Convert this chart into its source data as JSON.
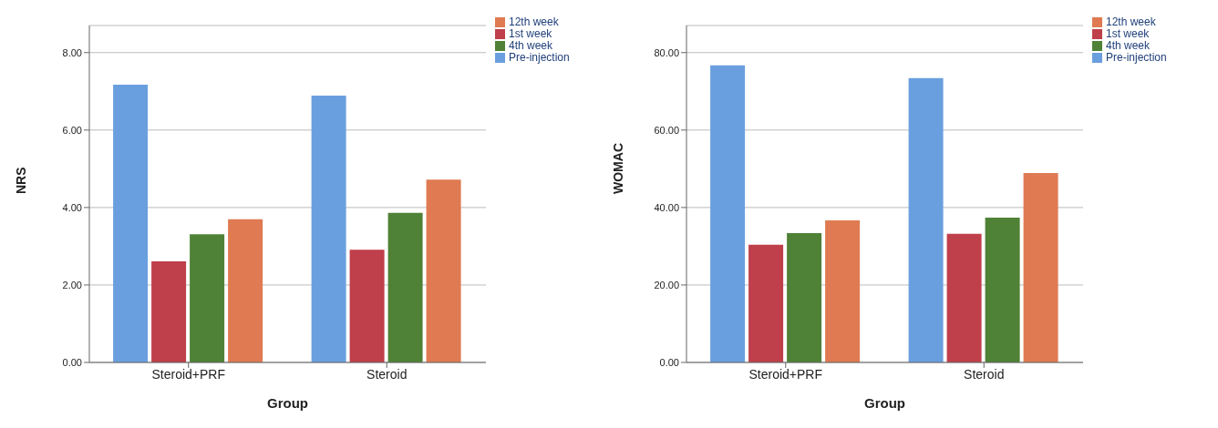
{
  "chart_data": [
    {
      "type": "bar",
      "xlabel": "Group",
      "ylabel": "NRS",
      "categories": [
        "Steroid+PRF",
        "Steroid"
      ],
      "series": [
        {
          "name": "Pre-injection",
          "color": "#6a9fdf",
          "values": [
            7.17,
            6.89
          ]
        },
        {
          "name": "1st week",
          "color": "#bf3f4a",
          "values": [
            2.61,
            2.91
          ]
        },
        {
          "name": "4th week",
          "color": "#4f8236",
          "values": [
            3.31,
            3.86
          ]
        },
        {
          "name": "12th week",
          "color": "#df7a52",
          "values": [
            3.7,
            4.72
          ]
        }
      ],
      "ylim": [
        0,
        8.7
      ],
      "yticks": [
        {
          "value": 0,
          "label": "0.00"
        },
        {
          "value": 2,
          "label": "2.00"
        },
        {
          "value": 4,
          "label": "4.00"
        },
        {
          "value": 6,
          "label": "6.00"
        },
        {
          "value": 8,
          "label": "8.00"
        }
      ],
      "grid": "y",
      "legend": "top right"
    },
    {
      "type": "bar",
      "xlabel": "Group",
      "ylabel": "WOMAC",
      "categories": [
        "Steroid+PRF",
        "Steroid"
      ],
      "series": [
        {
          "name": "Pre-injection",
          "color": "#6a9fdf",
          "values": [
            76.7,
            73.4
          ]
        },
        {
          "name": "1st week",
          "color": "#bf3f4a",
          "values": [
            30.4,
            33.2
          ]
        },
        {
          "name": "4th week",
          "color": "#4f8236",
          "values": [
            33.4,
            37.4
          ]
        },
        {
          "name": "12th week",
          "color": "#df7a52",
          "values": [
            36.7,
            48.9
          ]
        }
      ],
      "ylim": [
        0,
        87
      ],
      "yticks": [
        {
          "value": 0,
          "label": "0.00"
        },
        {
          "value": 20,
          "label": "20.00"
        },
        {
          "value": 40,
          "label": "40.00"
        },
        {
          "value": 60,
          "label": "60.00"
        },
        {
          "value": 80,
          "label": "80.00"
        }
      ],
      "grid": "y",
      "legend": "top right"
    }
  ]
}
